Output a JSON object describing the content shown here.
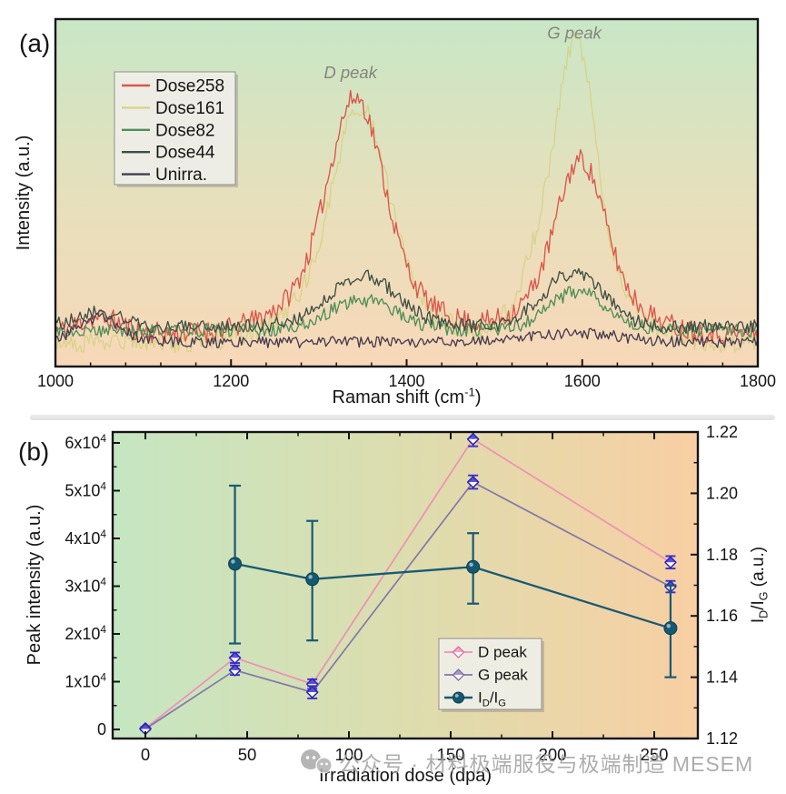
{
  "watermark": {
    "icon": "wechat-icon",
    "text": "公众号 · 材料极端服役与极端制造 MESEM",
    "color": "#a2a2a2"
  },
  "chart_data": [
    {
      "id": "panel-a",
      "type": "line",
      "tag": "(a)",
      "xlabel_parts": [
        {
          "t": "Raman shift (cm"
        },
        {
          "sup": "-1"
        },
        {
          "t": ")"
        }
      ],
      "ylabel": "Intensity (a.u.)",
      "x_range": [
        1000,
        1800
      ],
      "x_major_ticks": [
        1000,
        1200,
        1400,
        1600,
        1800
      ],
      "x_minor_step": 40,
      "y_axis_note": "intensity in arbitrary units, no tick labels",
      "grid": false,
      "legend_position": "upper-left",
      "background_stops": [
        "#c8e7c6",
        "#e6e0bc",
        "#f8d8b8"
      ],
      "annotations": [
        {
          "text": "D peak",
          "x": 1336,
          "yfrac": 0.845
        },
        {
          "text": "G peak",
          "x": 1591,
          "yfrac": 0.96
        }
      ],
      "series": [
        {
          "name": "Dose258",
          "color": "#da564a",
          "baseline": 0.095,
          "noise": 0.032,
          "peaks": [
            {
              "center": 1342,
              "sigma": 30,
              "height": 0.5
            },
            {
              "center": 1342,
              "sigma": 65,
              "height": 0.18
            },
            {
              "center": 1598,
              "sigma": 26,
              "height": 0.35
            },
            {
              "center": 1598,
              "sigma": 55,
              "height": 0.15
            },
            {
              "center": 1050,
              "sigma": 25,
              "height": 0.045
            }
          ]
        },
        {
          "name": "Dose161",
          "color": "#d8d38a",
          "baseline": 0.07,
          "noise": 0.03,
          "peaks": [
            {
              "center": 1347,
              "sigma": 30,
              "height": 0.5
            },
            {
              "center": 1347,
              "sigma": 65,
              "height": 0.18
            },
            {
              "center": 1593,
              "sigma": 22,
              "height": 0.65
            },
            {
              "center": 1593,
              "sigma": 50,
              "height": 0.22
            },
            {
              "center": 1548,
              "sigma": 18,
              "height": 0.1
            }
          ]
        },
        {
          "name": "Dose82",
          "color": "#4f8e58",
          "baseline": 0.105,
          "noise": 0.02,
          "peaks": [
            {
              "center": 1350,
              "sigma": 38,
              "height": 0.085
            },
            {
              "center": 1595,
              "sigma": 33,
              "height": 0.11
            }
          ]
        },
        {
          "name": "Dose44",
          "color": "#3e4f45",
          "baseline": 0.115,
          "noise": 0.02,
          "peaks": [
            {
              "center": 1350,
              "sigma": 40,
              "height": 0.145
            },
            {
              "center": 1590,
              "sigma": 34,
              "height": 0.155
            },
            {
              "center": 1050,
              "sigma": 25,
              "height": 0.04
            }
          ]
        },
        {
          "name": "Unirra.",
          "color": "#463c50",
          "baseline": 0.07,
          "noise": 0.016,
          "peaks": [
            {
              "center": 1050,
              "sigma": 24,
              "height": 0.07
            },
            {
              "center": 1595,
              "sigma": 50,
              "height": 0.025
            }
          ]
        }
      ],
      "draw_order": [
        1,
        0,
        2,
        3,
        4
      ]
    },
    {
      "id": "panel-b",
      "type": "line",
      "tag": "(b)",
      "xlabel": "Irradiation dose (dpa)",
      "ylabel_left": "Peak intensity (a.u.)",
      "ylabel_right_parts": [
        {
          "t": "I"
        },
        {
          "sub": "D"
        },
        {
          "t": "/I"
        },
        {
          "sub": "G"
        },
        {
          "t": " (a.u.)"
        }
      ],
      "x_ticks": [
        0,
        50,
        100,
        150,
        200,
        250
      ],
      "x_minor_step": 25,
      "y_left_ticks": [
        0,
        10000,
        20000,
        30000,
        40000,
        50000,
        60000
      ],
      "y_left_tick_labels": [
        [
          {
            "t": "0"
          }
        ],
        [
          {
            "t": "1x10"
          },
          {
            "sup": "4"
          }
        ],
        [
          {
            "t": "2x10"
          },
          {
            "sup": "4"
          }
        ],
        [
          {
            "t": "3x10"
          },
          {
            "sup": "4"
          }
        ],
        [
          {
            "t": "4x10"
          },
          {
            "sup": "4"
          }
        ],
        [
          {
            "t": "5x10"
          },
          {
            "sup": "4"
          }
        ],
        [
          {
            "t": "6x10"
          },
          {
            "sup": "4"
          }
        ]
      ],
      "y_left_range": [
        0,
        60000
      ],
      "y_right_ticks": [
        1.12,
        1.14,
        1.16,
        1.18,
        1.2,
        1.22
      ],
      "y_right_tick_labels": [
        "1.12",
        "1.14",
        "1.16",
        "1.18",
        "1.20",
        "1.22"
      ],
      "y_right_range": [
        1.12,
        1.22
      ],
      "grid": false,
      "legend_position": "lower-right",
      "background_stops": [
        "#c5e6c2",
        "#ddddae",
        "#f8cfa3"
      ],
      "error_bar_color": "#3a2fd0",
      "series": [
        {
          "name": "D peak",
          "axis": "left",
          "color": "#ef8fb6",
          "marker": "diamond",
          "marker_top_fill": "#f0a7c8",
          "marker_stroke": "#df6f9f",
          "x": [
            0,
            44,
            82,
            161,
            258
          ],
          "y": [
            200,
            15000,
            9500,
            60800,
            35000
          ],
          "yerr": [
            300,
            1100,
            1000,
            1500,
            1300
          ]
        },
        {
          "name": "G peak",
          "axis": "left",
          "color": "#8577a8",
          "marker": "diamond",
          "marker_top_fill": "#a898c8",
          "marker_stroke": "#7d6da6",
          "x": [
            0,
            44,
            82,
            161,
            258
          ],
          "y": [
            100,
            12400,
            7800,
            51800,
            29900
          ],
          "yerr": [
            300,
            1000,
            1300,
            1400,
            1200
          ]
        },
        {
          "name": "ID/IG",
          "name_parts": [
            {
              "t": "I"
            },
            {
              "sub": "D"
            },
            {
              "t": "/I"
            },
            {
              "sub": "G"
            }
          ],
          "axis": "right",
          "color": "#175a74",
          "marker": "circle",
          "x": [
            44,
            82,
            161,
            258
          ],
          "y": [
            1.177,
            1.172,
            1.176,
            1.156
          ],
          "yerr_up": [
            0.0255,
            0.019,
            0.011,
            0.014
          ],
          "yerr_down": [
            0.026,
            0.02,
            0.012,
            0.016
          ]
        }
      ]
    }
  ]
}
